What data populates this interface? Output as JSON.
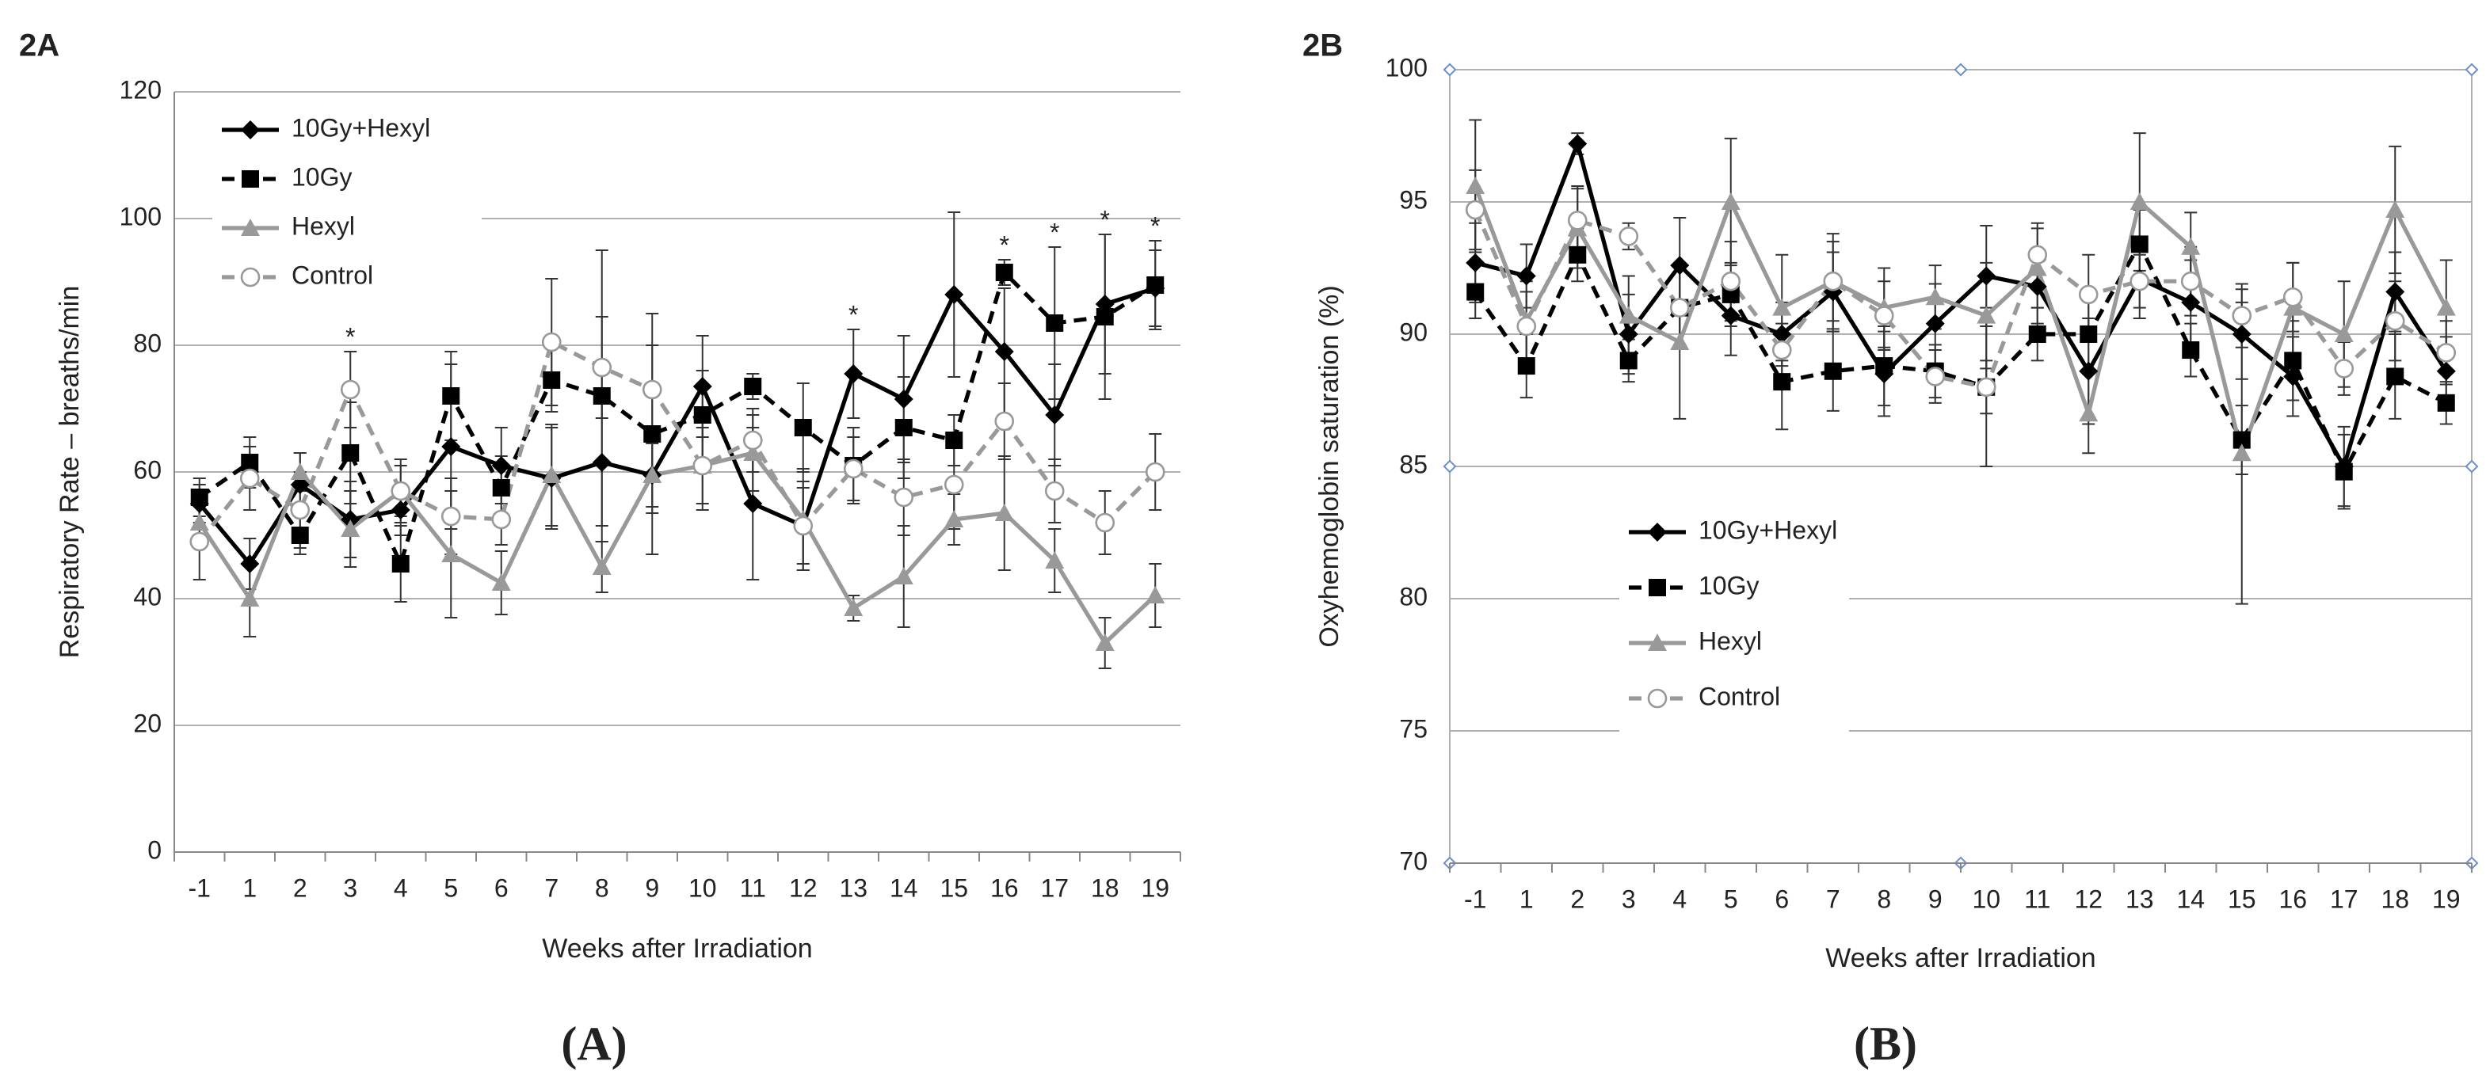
{
  "chart_data": [
    {
      "type": "line",
      "panel_label": "2A",
      "caption": "(A)",
      "x_label": "Weeks after Irradiation",
      "y_label": "Respiratory Rate – breaths/min",
      "categories": [
        "-1",
        "1",
        "2",
        "3",
        "4",
        "5",
        "6",
        "7",
        "8",
        "9",
        "10",
        "11",
        "12",
        "13",
        "14",
        "15",
        "16",
        "17",
        "18",
        "19"
      ],
      "ylim": [
        0,
        120
      ],
      "yticks": [
        0,
        20,
        40,
        60,
        80,
        100,
        120
      ],
      "grid": true,
      "legend": "upper left",
      "series": [
        {
          "name": "10Gy+Hexyl",
          "color": "#000000",
          "dash": false,
          "marker": "diamond",
          "values": [
            55,
            45.5,
            58,
            52.5,
            54,
            64,
            61,
            59,
            61.5,
            59.5,
            73.5,
            55,
            51.5,
            75.5,
            71.5,
            88,
            79,
            69,
            86.5,
            89
          ],
          "errors": [
            3,
            4,
            5,
            6,
            4,
            13,
            6,
            8,
            10,
            6,
            8,
            12,
            6,
            7,
            10,
            13,
            10,
            8,
            11,
            6
          ]
        },
        {
          "name": "10Gy",
          "color": "#000000",
          "dash": true,
          "marker": "square",
          "values": [
            56,
            61.5,
            50,
            63,
            45.5,
            72,
            57.5,
            74.5,
            72,
            66,
            69,
            73.5,
            67,
            61,
            67,
            65,
            91.5,
            83.5,
            84.5,
            89.5
          ],
          "errors": [
            3,
            4,
            3,
            8,
            6,
            7,
            5,
            5,
            23,
            19,
            7,
            2,
            7,
            6,
            8,
            4,
            2,
            12,
            13,
            7
          ]
        },
        {
          "name": "Hexyl",
          "color": "#999999",
          "dash": false,
          "marker": "triangle",
          "values": [
            52,
            40,
            60,
            51,
            57,
            47,
            42.5,
            59.5,
            45,
            59.5,
            61,
            63,
            52.5,
            38.5,
            43.5,
            52.5,
            53.5,
            46,
            33,
            40.5
          ],
          "errors": [
            4,
            6,
            3,
            6,
            4,
            10,
            5,
            8,
            4,
            5,
            6,
            6,
            8,
            2,
            8,
            4,
            9,
            5,
            4,
            5
          ]
        },
        {
          "name": "Control",
          "color": "#999999",
          "dash": true,
          "marker": "circle",
          "values": [
            49,
            59,
            54,
            73,
            57,
            53,
            52.5,
            80.5,
            76.5,
            73,
            61,
            65,
            51.5,
            60.5,
            56,
            58,
            68,
            57,
            52,
            60
          ],
          "errors": [
            6,
            5,
            6,
            6,
            5,
            6,
            4,
            10,
            8,
            7,
            7,
            5,
            7,
            5,
            6,
            7,
            6,
            5,
            5,
            6
          ]
        }
      ],
      "annotations": [
        {
          "text": "*",
          "category": "3"
        },
        {
          "text": "*",
          "category": "13"
        },
        {
          "text": "*",
          "category": "16"
        },
        {
          "text": "*",
          "category": "17"
        },
        {
          "text": "*",
          "category": "18"
        },
        {
          "text": "*",
          "category": "19"
        }
      ]
    },
    {
      "type": "line",
      "panel_label": "2B",
      "caption": "(B)",
      "x_label": "Weeks after Irradiation",
      "y_label": "Oxyhemoglobin  saturation (%)",
      "categories": [
        "-1",
        "1",
        "2",
        "3",
        "4",
        "5",
        "6",
        "7",
        "8",
        "9",
        "10",
        "11",
        "12",
        "13",
        "14",
        "15",
        "16",
        "17",
        "18",
        "19"
      ],
      "ylim": [
        70,
        100
      ],
      "yticks": [
        70,
        75,
        80,
        85,
        90,
        95,
        100
      ],
      "grid": true,
      "legend": "center left",
      "series": [
        {
          "name": "10Gy+Hexyl",
          "color": "#000000",
          "dash": false,
          "marker": "diamond",
          "values": [
            92.7,
            92.2,
            97.2,
            90,
            92.6,
            90.7,
            90,
            91.6,
            88.5,
            90.4,
            92.2,
            91.8,
            88.6,
            92.1,
            91.2,
            90,
            88.4,
            85,
            91.6,
            88.6
          ],
          "errors": [
            1.5,
            1.2,
            0.4,
            1.5,
            1.8,
            1.5,
            1.2,
            1.5,
            1.6,
            1.5,
            1.9,
            1.4,
            2,
            1.5,
            1.6,
            1.7,
            1.5,
            1.5,
            1.5,
            1.3
          ]
        },
        {
          "name": "10Gy",
          "color": "#000000",
          "dash": true,
          "marker": "square",
          "values": [
            91.6,
            88.8,
            93,
            89,
            91,
            91.5,
            88.2,
            88.6,
            88.8,
            88.6,
            88,
            90,
            90,
            93.4,
            89.4,
            86,
            89,
            84.8,
            88.4,
            87.4
          ],
          "errors": [
            1,
            1.2,
            1,
            0.8,
            1.5,
            1.2,
            1.8,
            1.5,
            1.5,
            1,
            3,
            1,
            1.5,
            1.3,
            1,
            1.3,
            1.5,
            1.4,
            1.6,
            0.8
          ]
        },
        {
          "name": "Hexyl",
          "color": "#999999",
          "dash": false,
          "marker": "triangle",
          "values": [
            95.6,
            90.5,
            94,
            90.7,
            89.7,
            95,
            91,
            92,
            91,
            91.4,
            90.7,
            92.5,
            87,
            95,
            93.3,
            85.5,
            91,
            90,
            94.7,
            91
          ],
          "errors": [
            2.5,
            1.5,
            1.5,
            1.5,
            2.9,
            2.4,
            2,
            1.8,
            1.5,
            1.2,
            2,
            1.5,
            1.5,
            2.6,
            1.3,
            5.7,
            1.7,
            2,
            2.4,
            1.8
          ]
        },
        {
          "name": "Control",
          "color": "#999999",
          "dash": true,
          "marker": "circle",
          "values": [
            94.7,
            90.3,
            94.3,
            93.7,
            91,
            92,
            89.4,
            92,
            90.7,
            88.4,
            88,
            93,
            91.5,
            92,
            92,
            90.7,
            91.4,
            88.7,
            90.5,
            89.3
          ],
          "errors": [
            1.5,
            1.3,
            1.3,
            0.5,
            1.5,
            1.5,
            1,
            1.5,
            1.3,
            1,
            1,
            1.2,
            1.5,
            1,
            1.3,
            1.2,
            1.3,
            1,
            1.5,
            1.2
          ]
        }
      ]
    }
  ]
}
